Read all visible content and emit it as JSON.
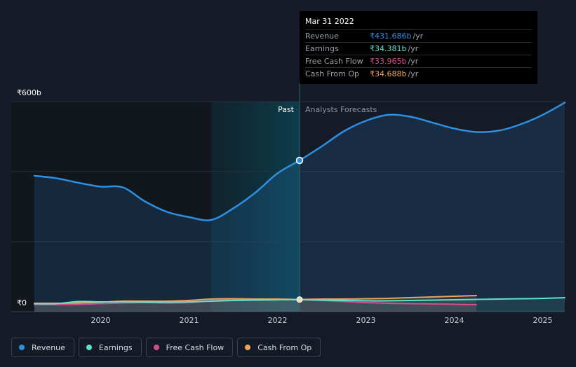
{
  "chart_data": {
    "type": "line",
    "currency_unit": "₹",
    "y_top_label": "₹600b",
    "y_bottom_label": "₹0",
    "ylim": [
      0,
      600
    ],
    "xlim": [
      2019.25,
      2025.25
    ],
    "x_ticks": [
      2020,
      2021,
      2022,
      2023,
      2024,
      2025
    ],
    "x_tick_labels": [
      "2020",
      "2021",
      "2022",
      "2023",
      "2024",
      "2025"
    ],
    "past_label": "Past",
    "forecast_label": "Analysts Forecasts",
    "divider_x": 2022.25,
    "highlight_start": 2021.25,
    "series": [
      {
        "name": "Revenue",
        "key": "revenue",
        "color": "#2d8fe0",
        "fill": true,
        "x": [
          2019.25,
          2019.5,
          2019.75,
          2020.0,
          2020.25,
          2020.5,
          2020.75,
          2021.0,
          2021.25,
          2021.5,
          2021.75,
          2022.0,
          2022.25,
          2022.5,
          2022.75,
          2023.0,
          2023.25,
          2023.5,
          2023.75,
          2024.0,
          2024.25,
          2024.5,
          2024.75,
          2025.0,
          2025.25
        ],
        "values": [
          388,
          381,
          368,
          357,
          355,
          315,
          285,
          270,
          262,
          295,
          340,
          395,
          432,
          472,
          515,
          545,
          562,
          557,
          540,
          523,
          513,
          517,
          535,
          562,
          597
        ]
      },
      {
        "name": "Earnings",
        "key": "earnings",
        "color": "#5fe2cc",
        "fill": false,
        "x": [
          2019.25,
          2019.5,
          2019.75,
          2020.0,
          2020.25,
          2020.5,
          2020.75,
          2021.0,
          2021.25,
          2021.5,
          2021.75,
          2022.0,
          2022.25,
          2022.5,
          2022.75,
          2023.0,
          2023.25,
          2023.5,
          2023.75,
          2024.0,
          2024.25,
          2024.5,
          2024.75,
          2025.0,
          2025.25
        ],
        "values": [
          23,
          23,
          29,
          28,
          28,
          27,
          27,
          28,
          30,
          32,
          33,
          34,
          34.4,
          33,
          32,
          31,
          31,
          32,
          33,
          34,
          35,
          36,
          37,
          38,
          40
        ]
      },
      {
        "name": "Free Cash Flow",
        "key": "free_cash_flow",
        "color": "#d14f8c",
        "fill": false,
        "x": [
          2019.25,
          2019.5,
          2019.75,
          2020.0,
          2020.25,
          2020.5,
          2020.75,
          2021.0,
          2021.25,
          2021.5,
          2021.75,
          2022.0,
          2022.25,
          2022.5,
          2022.75,
          2023.0,
          2023.25,
          2023.5,
          2023.75,
          2024.0,
          2024.25
        ],
        "values": [
          20,
          20,
          21,
          23,
          25,
          26,
          25,
          26,
          31,
          34,
          33,
          34,
          34,
          32,
          29,
          26,
          24,
          23,
          22,
          21,
          20
        ]
      },
      {
        "name": "Cash From Op",
        "key": "cash_from_op",
        "color": "#e9a55e",
        "fill": false,
        "x": [
          2019.25,
          2019.5,
          2019.75,
          2020.0,
          2020.25,
          2020.5,
          2020.75,
          2021.0,
          2021.25,
          2021.5,
          2021.75,
          2022.0,
          2022.25,
          2022.5,
          2022.75,
          2023.0,
          2023.25,
          2023.5,
          2023.75,
          2024.0,
          2024.25
        ],
        "values": [
          24,
          24,
          25,
          27,
          30,
          30,
          30,
          32,
          36,
          37,
          36,
          36,
          34.7,
          36,
          36,
          37,
          38,
          40,
          42,
          44,
          46
        ]
      }
    ]
  },
  "tooltip": {
    "date": "Mar 31 2022",
    "rows": [
      {
        "label": "Revenue",
        "value": "₹431.686b",
        "unit": "/yr",
        "color": "#2d8fe0"
      },
      {
        "label": "Earnings",
        "value": "₹34.381b",
        "unit": "/yr",
        "color": "#5fe2cc"
      },
      {
        "label": "Free Cash Flow",
        "value": "₹33.965b",
        "unit": "/yr",
        "color": "#d14f8c"
      },
      {
        "label": "Cash From Op",
        "value": "₹34.688b",
        "unit": "/yr",
        "color": "#e9a55e"
      }
    ]
  },
  "legend": [
    {
      "label": "Revenue",
      "color": "#2d8fe0"
    },
    {
      "label": "Earnings",
      "color": "#5fe2cc"
    },
    {
      "label": "Free Cash Flow",
      "color": "#d14f8c"
    },
    {
      "label": "Cash From Op",
      "color": "#e9a55e"
    }
  ]
}
